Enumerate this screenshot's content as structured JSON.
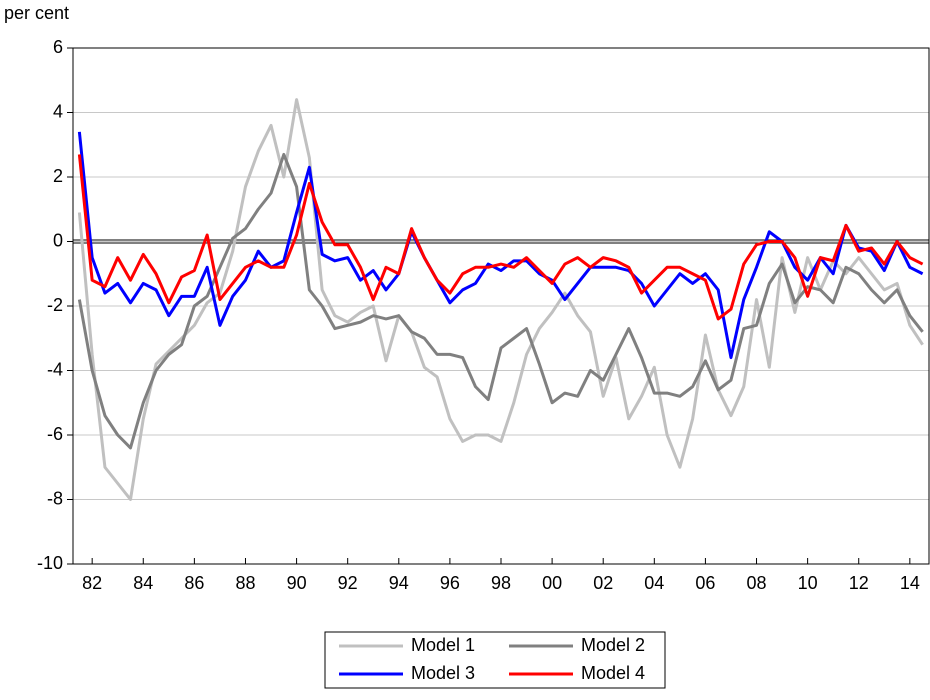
{
  "chart_data": {
    "type": "line",
    "y_axis_label": "per cent",
    "categories": [
      null,
      "82",
      null,
      null,
      null,
      "84",
      null,
      null,
      null,
      "86",
      null,
      null,
      null,
      "88",
      null,
      null,
      null,
      "90",
      null,
      null,
      null,
      "92",
      null,
      null,
      null,
      "94",
      null,
      null,
      null,
      "96",
      null,
      null,
      null,
      "98",
      null,
      null,
      null,
      "00",
      null,
      null,
      null,
      "02",
      null,
      null,
      null,
      "04",
      null,
      null,
      null,
      "06",
      null,
      null,
      null,
      "08",
      null,
      null,
      null,
      "10",
      null,
      null,
      null,
      "12",
      null,
      null,
      null,
      "14",
      null
    ],
    "series": [
      {
        "name": "Model 1",
        "color": "#c0c0c0",
        "values": [
          0.9,
          -3.5,
          -7,
          -7.5,
          -8,
          -5.5,
          -3.8,
          -3.4,
          -3.0,
          -2.6,
          -1.9,
          -1.6,
          -0.3,
          1.7,
          2.8,
          3.6,
          2.0,
          4.4,
          2.6,
          -1.5,
          -2.3,
          -2.5,
          -2.2,
          -2.0,
          -3.7,
          -2.3,
          -2.8,
          -3.9,
          -4.2,
          -5.5,
          -6.2,
          -6.0,
          -6.0,
          -6.2,
          -5.0,
          -3.5,
          -2.7,
          -2.2,
          -1.6,
          -2.3,
          -2.8,
          -4.8,
          -3.6,
          -5.5,
          -4.8,
          -3.9,
          -6.0,
          -7.0,
          -5.5,
          -2.9,
          -4.6,
          -5.4,
          -4.5,
          -1.8,
          -3.9,
          -0.5,
          -2.2,
          -0.5,
          -1.5,
          -0.6,
          -1.0,
          -0.5,
          -1.0,
          -1.5,
          -1.3,
          -2.6,
          -3.2
        ]
      },
      {
        "name": "Model 2",
        "color": "#808080",
        "values": [
          -1.8,
          -4,
          -5.4,
          -6.0,
          -6.4,
          -5.0,
          -4.0,
          -3.5,
          -3.2,
          -2.0,
          -1.7,
          -0.8,
          0.1,
          0.4,
          1.0,
          1.5,
          2.7,
          1.7,
          -1.5,
          -2.0,
          -2.7,
          -2.6,
          -2.5,
          -2.3,
          -2.4,
          -2.3,
          -2.8,
          -3.0,
          -3.5,
          -3.5,
          -3.6,
          -4.5,
          -4.9,
          -3.3,
          -3.0,
          -2.7,
          -3.8,
          -5.0,
          -4.7,
          -4.8,
          -4.0,
          -4.3,
          -3.5,
          -2.7,
          -3.6,
          -4.7,
          -4.7,
          -4.8,
          -4.5,
          -3.7,
          -4.6,
          -4.3,
          -2.7,
          -2.6,
          -1.3,
          -0.7,
          -1.9,
          -1.4,
          -1.5,
          -1.9,
          -0.8,
          -1.0,
          -1.5,
          -1.9,
          -1.5,
          -2.3,
          -2.8
        ]
      },
      {
        "name": "Model 3",
        "color": "#0000ff",
        "values": [
          3.4,
          -0.5,
          -1.6,
          -1.3,
          -1.9,
          -1.3,
          -1.5,
          -2.3,
          -1.7,
          -1.7,
          -0.8,
          -2.6,
          -1.7,
          -1.2,
          -0.3,
          -0.8,
          -0.6,
          0.9,
          2.3,
          -0.4,
          -0.6,
          -0.5,
          -1.2,
          -0.9,
          -1.5,
          -1.0,
          0.3,
          -0.5,
          -1.2,
          -1.9,
          -1.5,
          -1.3,
          -0.7,
          -0.9,
          -0.6,
          -0.6,
          -1.0,
          -1.2,
          -1.8,
          -1.3,
          -0.8,
          -0.8,
          -0.8,
          -0.9,
          -1.3,
          -2.0,
          -1.5,
          -1.0,
          -1.3,
          -1.0,
          -1.5,
          -3.6,
          -1.8,
          -0.8,
          0.3,
          0.0,
          -0.8,
          -1.2,
          -0.5,
          -1.0,
          0.5,
          -0.2,
          -0.3,
          -0.9,
          0.0,
          -0.8,
          -1.0
        ]
      },
      {
        "name": "Model 4",
        "color": "#ff0000",
        "values": [
          2.7,
          -1.2,
          -1.4,
          -0.5,
          -1.2,
          -0.4,
          -1.0,
          -1.9,
          -1.1,
          -0.9,
          0.2,
          -1.8,
          -1.3,
          -0.8,
          -0.6,
          -0.8,
          -0.8,
          0.2,
          1.8,
          0.6,
          -0.1,
          -0.1,
          -0.8,
          -1.8,
          -0.8,
          -1.0,
          0.4,
          -0.5,
          -1.2,
          -1.6,
          -1.0,
          -0.8,
          -0.8,
          -0.7,
          -0.8,
          -0.5,
          -0.9,
          -1.3,
          -0.7,
          -0.5,
          -0.8,
          -0.5,
          -0.6,
          -0.8,
          -1.6,
          -1.2,
          -0.8,
          -0.8,
          -1.0,
          -1.2,
          -2.4,
          -2.1,
          -0.7,
          -0.1,
          0.0,
          0.0,
          -0.5,
          -1.7,
          -0.5,
          -0.6,
          0.5,
          -0.3,
          -0.2,
          -0.7,
          0.0,
          -0.5,
          -0.7
        ]
      }
    ],
    "ylim": [
      -10,
      6
    ],
    "yticks": [
      -10,
      -8,
      -6,
      -4,
      -2,
      0,
      2,
      4,
      6
    ],
    "grid": true,
    "zero_line": true,
    "legend_position": "bottom"
  }
}
